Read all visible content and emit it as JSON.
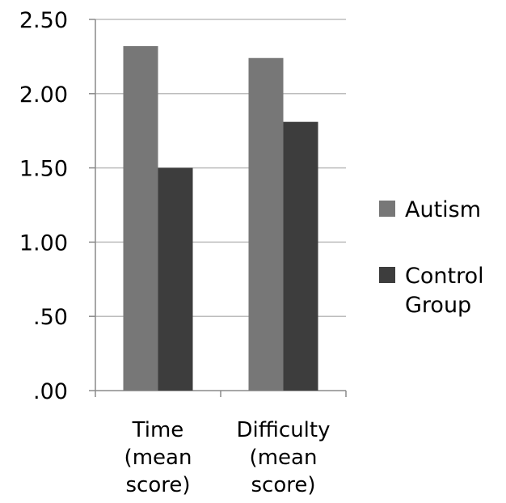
{
  "chart_data": {
    "type": "bar",
    "categories": [
      [
        "Time",
        "(mean",
        "score)"
      ],
      [
        "Difficulty",
        "(mean",
        "score)"
      ]
    ],
    "series": [
      {
        "name": "Autism",
        "values": [
          2.32,
          2.24
        ],
        "color": "#777777"
      },
      {
        "name": [
          "Control",
          "Group"
        ],
        "values": [
          1.5,
          1.81
        ],
        "color": "#3d3d3d"
      }
    ],
    "y_ticks": [
      ".00",
      ".50",
      "1.00",
      "1.50",
      "2.00",
      "2.50"
    ],
    "ylim": [
      0,
      2.5
    ],
    "grid": true,
    "legend_position": "right"
  }
}
